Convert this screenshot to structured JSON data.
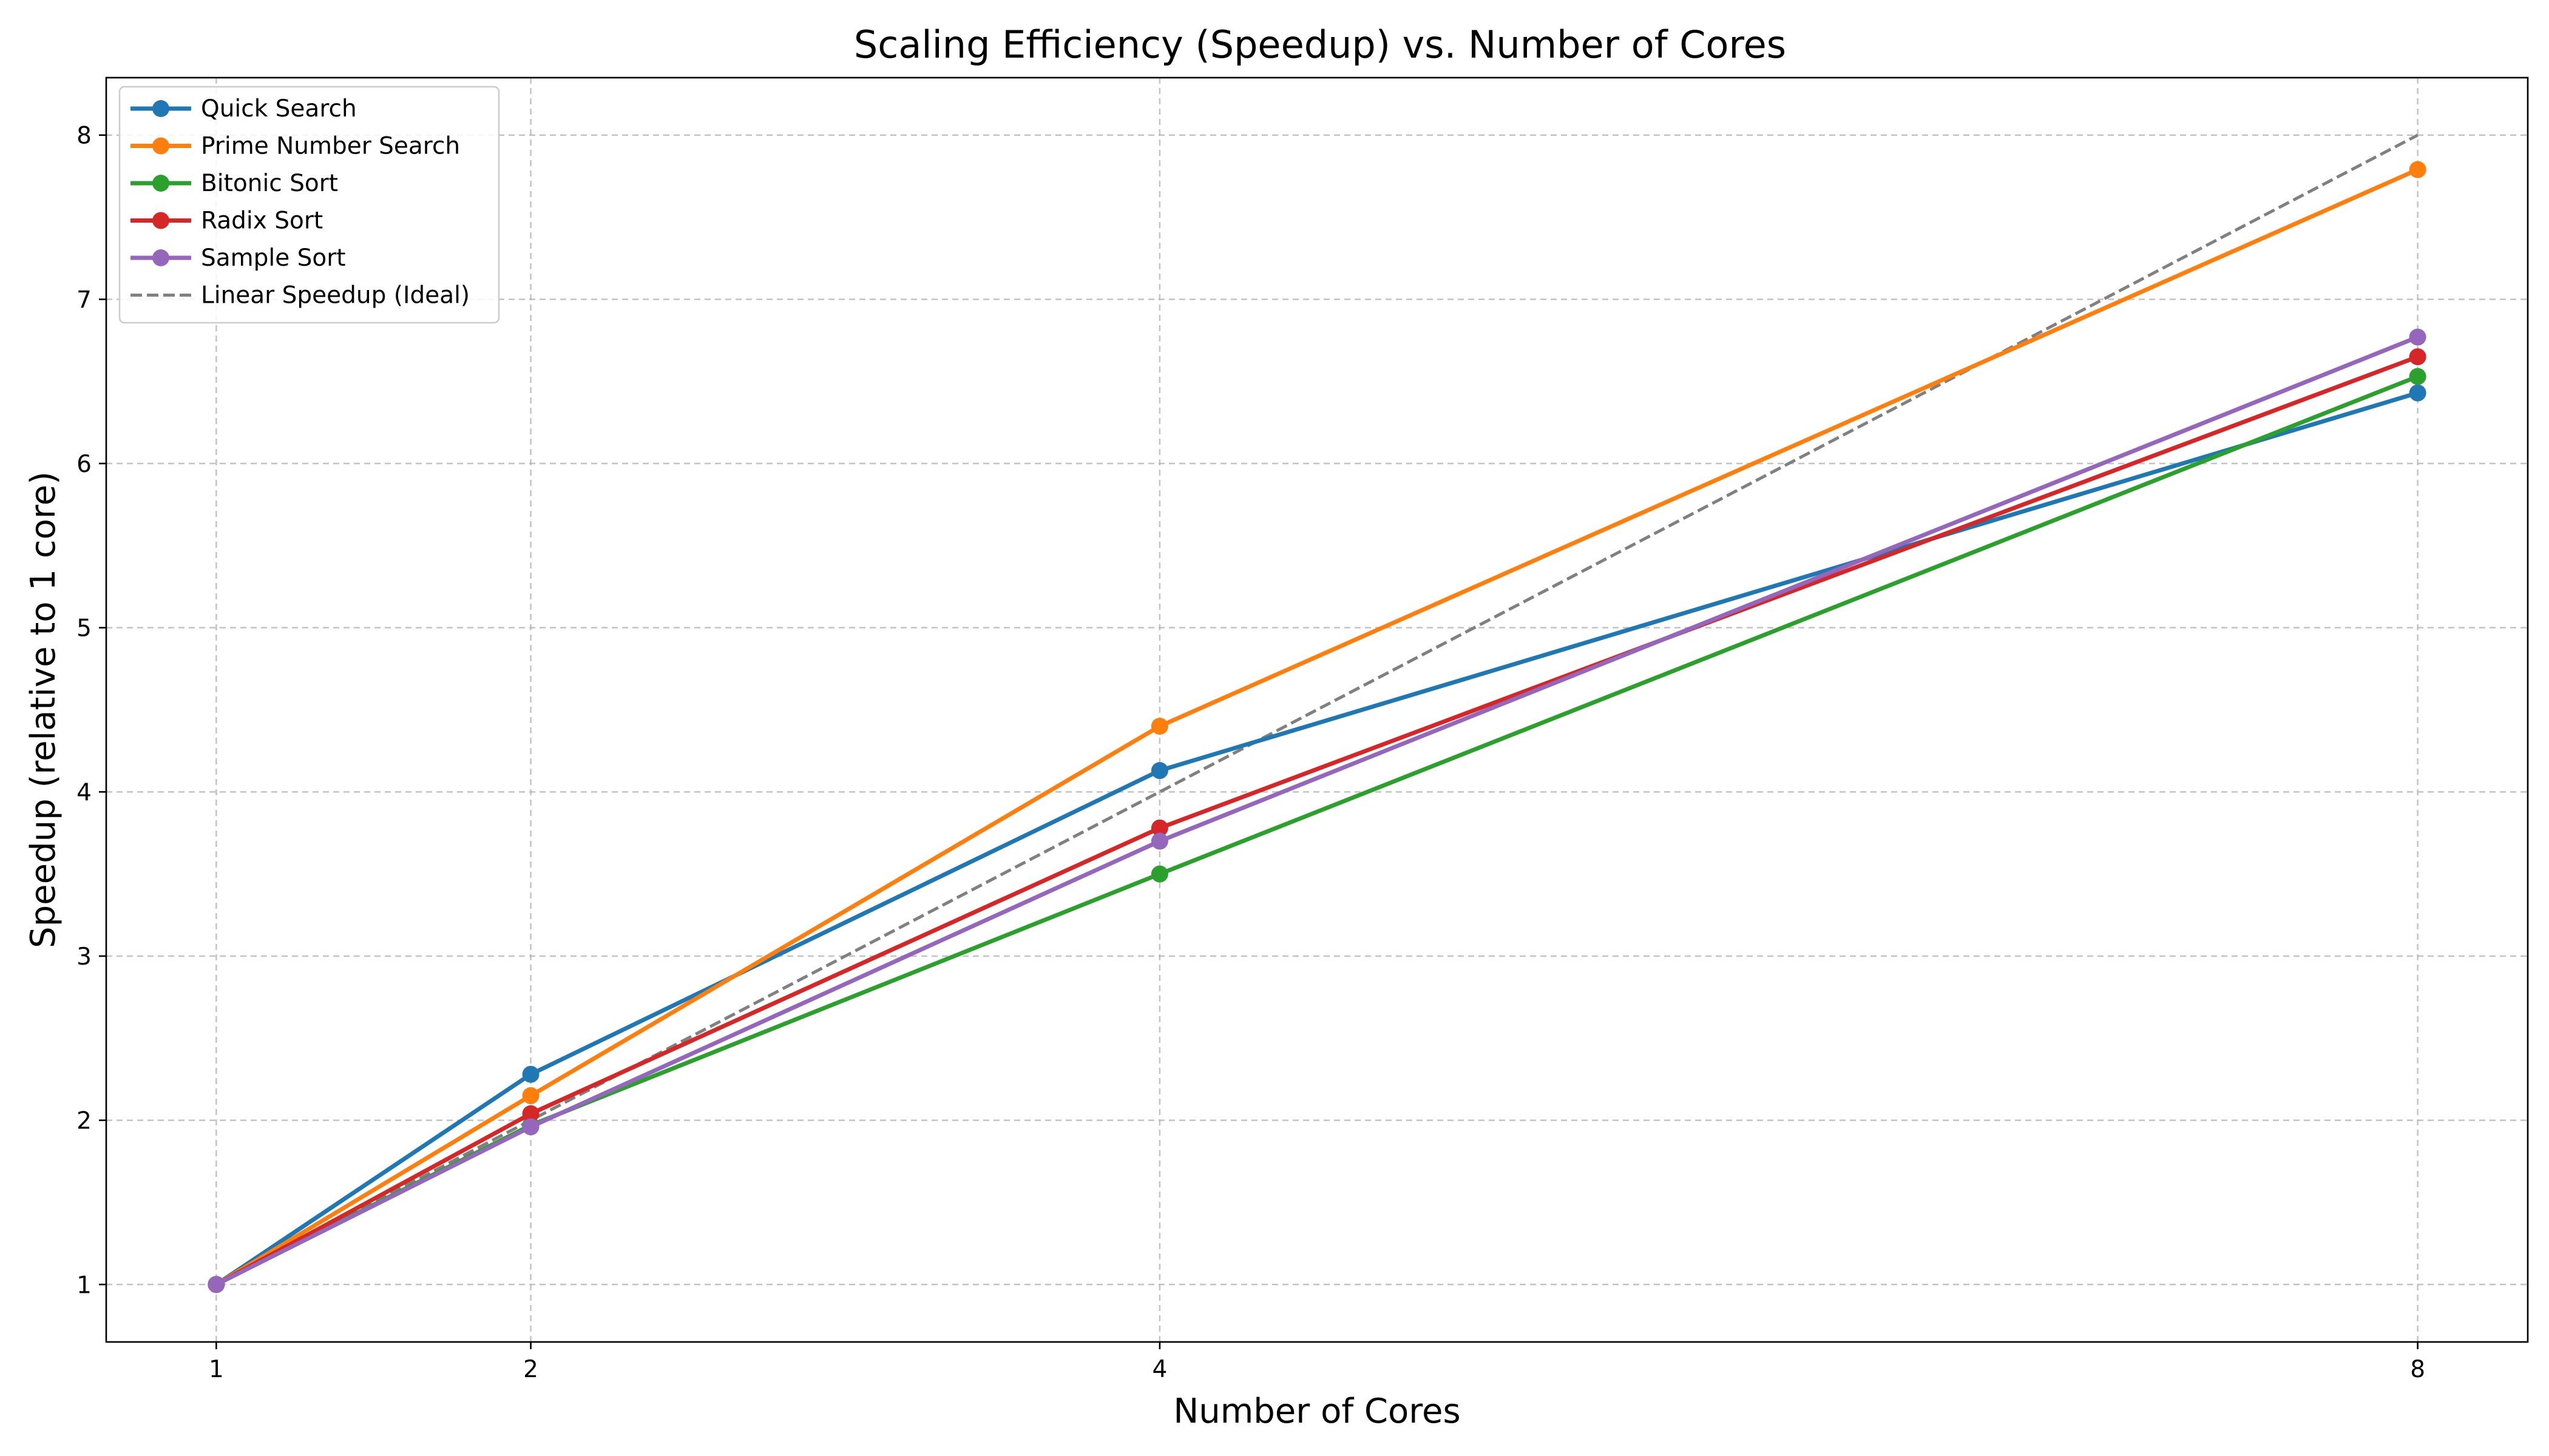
{
  "chart_data": {
    "type": "line",
    "title": "Scaling Efficiency (Speedup) vs. Number of Cores",
    "xlabel": "Number of Cores",
    "ylabel": "Speedup (relative to 1 core)",
    "x": [
      1,
      2,
      4,
      8
    ],
    "xticks": [
      "1",
      "2",
      "4",
      "8"
    ],
    "yticks": [
      "1",
      "2",
      "3",
      "4",
      "5",
      "6",
      "7",
      "8"
    ],
    "xlim": [
      0.65,
      8.35
    ],
    "ylim": [
      0.65,
      8.35
    ],
    "grid": true,
    "legend_position": "top-left",
    "series": [
      {
        "name": "Quick Search",
        "color": "#1f77b4",
        "style": "solid",
        "marker": "circle",
        "values": [
          1.0,
          2.28,
          4.13,
          6.43
        ]
      },
      {
        "name": "Prime Number Search",
        "color": "#ff7f0e",
        "style": "solid",
        "marker": "circle",
        "values": [
          1.0,
          2.15,
          4.4,
          7.79
        ]
      },
      {
        "name": "Bitonic Sort",
        "color": "#2ca02c",
        "style": "solid",
        "marker": "circle",
        "values": [
          1.0,
          1.97,
          3.5,
          6.53
        ]
      },
      {
        "name": "Radix Sort",
        "color": "#d62728",
        "style": "solid",
        "marker": "circle",
        "values": [
          1.0,
          2.04,
          3.78,
          6.65
        ]
      },
      {
        "name": "Sample Sort",
        "color": "#9467bd",
        "style": "solid",
        "marker": "circle",
        "values": [
          1.0,
          1.96,
          3.7,
          6.77
        ]
      },
      {
        "name": "Linear Speedup (Ideal)",
        "color": "#808080",
        "style": "dashed",
        "marker": "none",
        "values": [
          1,
          2,
          4,
          8
        ]
      }
    ]
  }
}
